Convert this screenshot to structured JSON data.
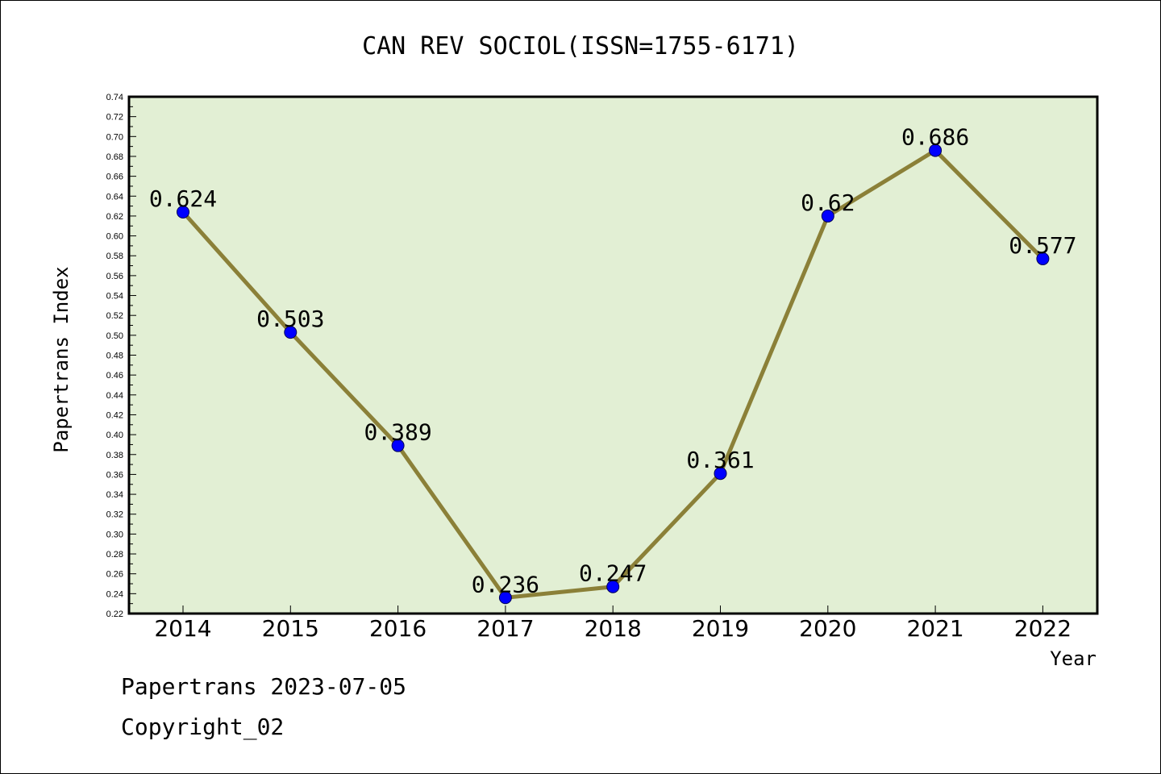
{
  "chart_data": {
    "type": "line",
    "title": "CAN REV SOCIOL(ISSN=1755-6171)",
    "xlabel": "Year",
    "ylabel": "Papertrans Index",
    "categories": [
      "2014",
      "2015",
      "2016",
      "2017",
      "2018",
      "2019",
      "2020",
      "2021",
      "2022"
    ],
    "values": [
      0.624,
      0.503,
      0.389,
      0.236,
      0.247,
      0.361,
      0.62,
      0.686,
      0.577
    ],
    "data_labels": [
      "0.624",
      "0.503",
      "0.389",
      "0.236",
      "0.247",
      "0.361",
      "0.62",
      "0.686",
      "0.577"
    ],
    "ylim": [
      0.22,
      0.74
    ],
    "yticks": [
      "0.22",
      "0.24",
      "0.26",
      "0.28",
      "0.30",
      "0.32",
      "0.34",
      "0.36",
      "0.38",
      "0.40",
      "0.42",
      "0.44",
      "0.46",
      "0.48",
      "0.50",
      "0.52",
      "0.54",
      "0.56",
      "0.58",
      "0.60",
      "0.62",
      "0.64",
      "0.66",
      "0.68",
      "0.70",
      "0.72",
      "0.74"
    ],
    "grid": false,
    "colors": {
      "plot_background": "#e2efd4",
      "line": "#8b8038",
      "marker": "#0000ff"
    }
  },
  "footer": {
    "line1": "Papertrans 2023-07-05",
    "line2": "Copyright_02"
  }
}
